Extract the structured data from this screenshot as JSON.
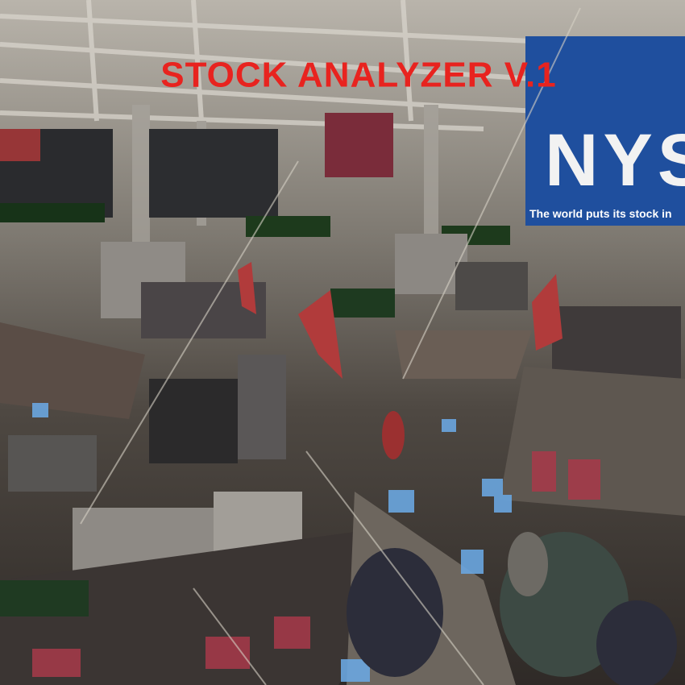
{
  "header": {
    "title": "STOCK ANALYZER V.1"
  },
  "banner": {
    "logo": "NYSE",
    "slogan": "The world puts its stock in"
  }
}
